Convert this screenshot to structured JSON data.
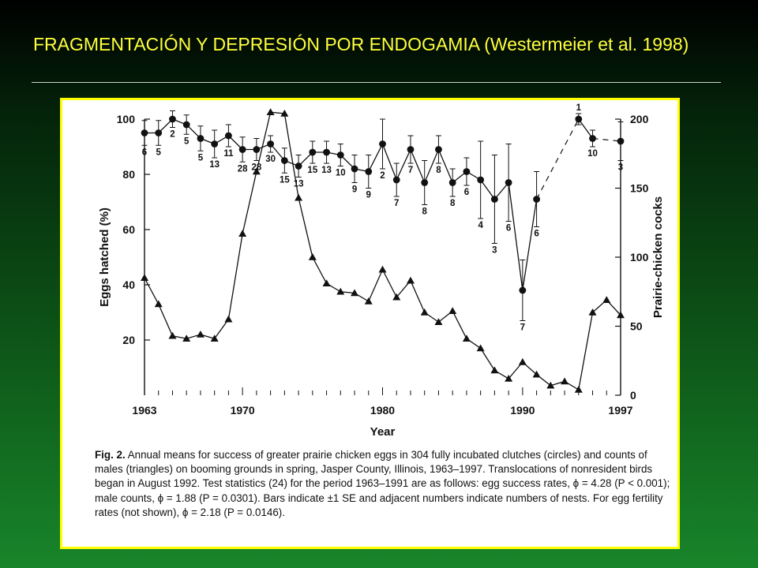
{
  "slide": {
    "title": "FRAGMENTACIÓN Y DEPRESIÓN POR ENDOGAMIA (Westermeier et al. 1998)"
  },
  "colors": {
    "title": "#ffff3c",
    "frame_border": "#ffff00",
    "background_top": "#000000",
    "background_bottom": "#18852a",
    "ink": "#111111"
  },
  "figure": {
    "caption_label": "Fig. 2.",
    "caption_text": "Annual means for success of greater prairie chicken eggs in 304 fully incubated clutches (circles) and counts of males (triangles) on booming grounds in spring, Jasper County, Illinois, 1963–1997. Translocations of nonresident birds began in August 1992. Test statistics (24) for the period 1963–1991 are as follows: egg success rates, ϕ = 4.28 (P < 0.001); male counts, ϕ = 1.88 (P = 0.0301). Bars indicate ±1 SE and adjacent numbers indicate numbers of nests. For egg fertility rates (not shown), ϕ = 2.18 (P = 0.0146)."
  },
  "chart_data": {
    "type": "line",
    "xlabel": "Year",
    "ylabel_left": "Eggs hatched (%)",
    "ylabel_right": "Prairie-chicken cocks",
    "xlim": [
      1963,
      1997
    ],
    "ylim_left": [
      0,
      100
    ],
    "ylim_right": [
      0,
      200
    ],
    "x_ticks": [
      "1963",
      "1970",
      "1980",
      "1990",
      "1997"
    ],
    "y_ticks_left": [
      "20",
      "40",
      "60",
      "80",
      "100"
    ],
    "y_ticks_right": [
      "0",
      "50",
      "100",
      "150",
      "200"
    ],
    "grid": false,
    "series": [
      {
        "axis": "left",
        "marker": "circle",
        "points": [
          {
            "x": 1963,
            "y": 95,
            "se": 4.5,
            "n": "6"
          },
          {
            "x": 1964,
            "y": 95,
            "se": 4.5,
            "n": "5"
          },
          {
            "x": 1965,
            "y": 100,
            "se": 3,
            "n": "2"
          },
          {
            "x": 1966,
            "y": 98,
            "se": 3.5,
            "n": "5"
          },
          {
            "x": 1967,
            "y": 93,
            "se": 4.5,
            "n": "5"
          },
          {
            "x": 1968,
            "y": 91,
            "se": 5,
            "n": "13"
          },
          {
            "x": 1969,
            "y": 94,
            "se": 4,
            "n": "11"
          },
          {
            "x": 1970,
            "y": 89,
            "se": 4.5,
            "n": "28"
          },
          {
            "x": 1971,
            "y": 89,
            "se": 4,
            "n": "28"
          },
          {
            "x": 1972,
            "y": 91,
            "se": 3,
            "n": "30"
          },
          {
            "x": 1973,
            "y": 85,
            "se": 4.5,
            "n": "15"
          },
          {
            "x": 1974,
            "y": 83,
            "se": 4,
            "n": "13"
          },
          {
            "x": 1975,
            "y": 88,
            "se": 4,
            "n": "15"
          },
          {
            "x": 1976,
            "y": 88,
            "se": 4,
            "n": "13"
          },
          {
            "x": 1977,
            "y": 87,
            "se": 4,
            "n": "10"
          },
          {
            "x": 1978,
            "y": 82,
            "se": 5,
            "n": "9"
          },
          {
            "x": 1979,
            "y": 81,
            "se": 6,
            "n": "9"
          },
          {
            "x": 1980,
            "y": 91,
            "se": 9,
            "n": "2"
          },
          {
            "x": 1981,
            "y": 78,
            "se": 6,
            "n": "7"
          },
          {
            "x": 1982,
            "y": 89,
            "se": 5,
            "n": "7"
          },
          {
            "x": 1983,
            "y": 77,
            "se": 8,
            "n": "8"
          },
          {
            "x": 1984,
            "y": 89,
            "se": 5,
            "n": "8"
          },
          {
            "x": 1985,
            "y": 77,
            "se": 5,
            "n": "8"
          },
          {
            "x": 1986,
            "y": 81,
            "se": 5,
            "n": "6"
          },
          {
            "x": 1987,
            "y": 78,
            "se": 14,
            "n": "4"
          },
          {
            "x": 1988,
            "y": 71,
            "se": 16,
            "n": "3"
          },
          {
            "x": 1989,
            "y": 77,
            "se": 14,
            "n": "6"
          },
          {
            "x": 1990,
            "y": 38,
            "se": 11,
            "n": "7"
          },
          {
            "x": 1991,
            "y": 71,
            "se": 10,
            "n": "6"
          },
          {
            "x": 1994,
            "y": 100,
            "se": 2,
            "n": "1"
          },
          {
            "x": 1995,
            "y": 93,
            "se": 3,
            "n": "10"
          },
          {
            "x": 1997,
            "y": 92,
            "se": 7,
            "n": "3"
          }
        ]
      },
      {
        "axis": "right",
        "marker": "triangle",
        "points": [
          {
            "x": 1963,
            "y": 85
          },
          {
            "x": 1964,
            "y": 66
          },
          {
            "x": 1965,
            "y": 43
          },
          {
            "x": 1966,
            "y": 41
          },
          {
            "x": 1967,
            "y": 44
          },
          {
            "x": 1968,
            "y": 41
          },
          {
            "x": 1969,
            "y": 55
          },
          {
            "x": 1970,
            "y": 117
          },
          {
            "x": 1971,
            "y": 162
          },
          {
            "x": 1972,
            "y": 205
          },
          {
            "x": 1973,
            "y": 204
          },
          {
            "x": 1974,
            "y": 143
          },
          {
            "x": 1975,
            "y": 100
          },
          {
            "x": 1976,
            "y": 81
          },
          {
            "x": 1977,
            "y": 75
          },
          {
            "x": 1978,
            "y": 74
          },
          {
            "x": 1979,
            "y": 68
          },
          {
            "x": 1980,
            "y": 91
          },
          {
            "x": 1981,
            "y": 71
          },
          {
            "x": 1982,
            "y": 83
          },
          {
            "x": 1983,
            "y": 60
          },
          {
            "x": 1984,
            "y": 53
          },
          {
            "x": 1985,
            "y": 61
          },
          {
            "x": 1986,
            "y": 41
          },
          {
            "x": 1987,
            "y": 34
          },
          {
            "x": 1988,
            "y": 18
          },
          {
            "x": 1989,
            "y": 12
          },
          {
            "x": 1990,
            "y": 24
          },
          {
            "x": 1991,
            "y": 15
          },
          {
            "x": 1992,
            "y": 7
          },
          {
            "x": 1993,
            "y": 10
          },
          {
            "x": 1994,
            "y": 4
          },
          {
            "x": 1995,
            "y": 60
          },
          {
            "x": 1996,
            "y": 69
          },
          {
            "x": 1997,
            "y": 58
          }
        ]
      }
    ]
  }
}
